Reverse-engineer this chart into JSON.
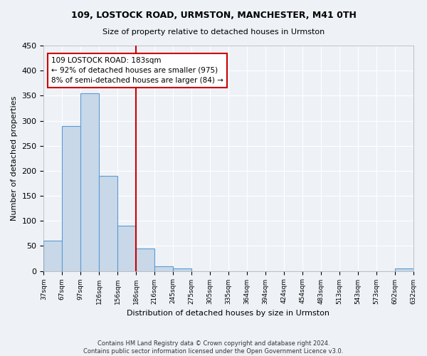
{
  "title1": "109, LOSTOCK ROAD, URMSTON, MANCHESTER, M41 0TH",
  "title2": "Size of property relative to detached houses in Urmston",
  "xlabel": "Distribution of detached houses by size in Urmston",
  "ylabel": "Number of detached properties",
  "bar_color": "#c8d8e8",
  "bar_edge_color": "#5b9bd5",
  "bin_labels": [
    "37sqm",
    "67sqm",
    "97sqm",
    "126sqm",
    "156sqm",
    "186sqm",
    "216sqm",
    "245sqm",
    "275sqm",
    "305sqm",
    "335sqm",
    "364sqm",
    "394sqm",
    "424sqm",
    "454sqm",
    "483sqm",
    "513sqm",
    "543sqm",
    "573sqm",
    "602sqm",
    "632sqm"
  ],
  "bar_heights": [
    60,
    290,
    355,
    190,
    90,
    45,
    10,
    5,
    0,
    0,
    0,
    0,
    0,
    0,
    0,
    0,
    0,
    0,
    0,
    5
  ],
  "vline_idx": 5,
  "vline_color": "#cc0000",
  "annotation_text": "109 LOSTOCK ROAD: 183sqm\n← 92% of detached houses are smaller (975)\n8% of semi-detached houses are larger (84) →",
  "annotation_box_color": "#ffffff",
  "annotation_box_edge": "#cc0000",
  "footer": "Contains HM Land Registry data © Crown copyright and database right 2024.\nContains public sector information licensed under the Open Government Licence v3.0.",
  "ylim": [
    0,
    450
  ],
  "background_color": "#eef2f7",
  "grid_color": "#ffffff",
  "fig_width": 6.0,
  "fig_height": 5.0,
  "dpi": 100
}
